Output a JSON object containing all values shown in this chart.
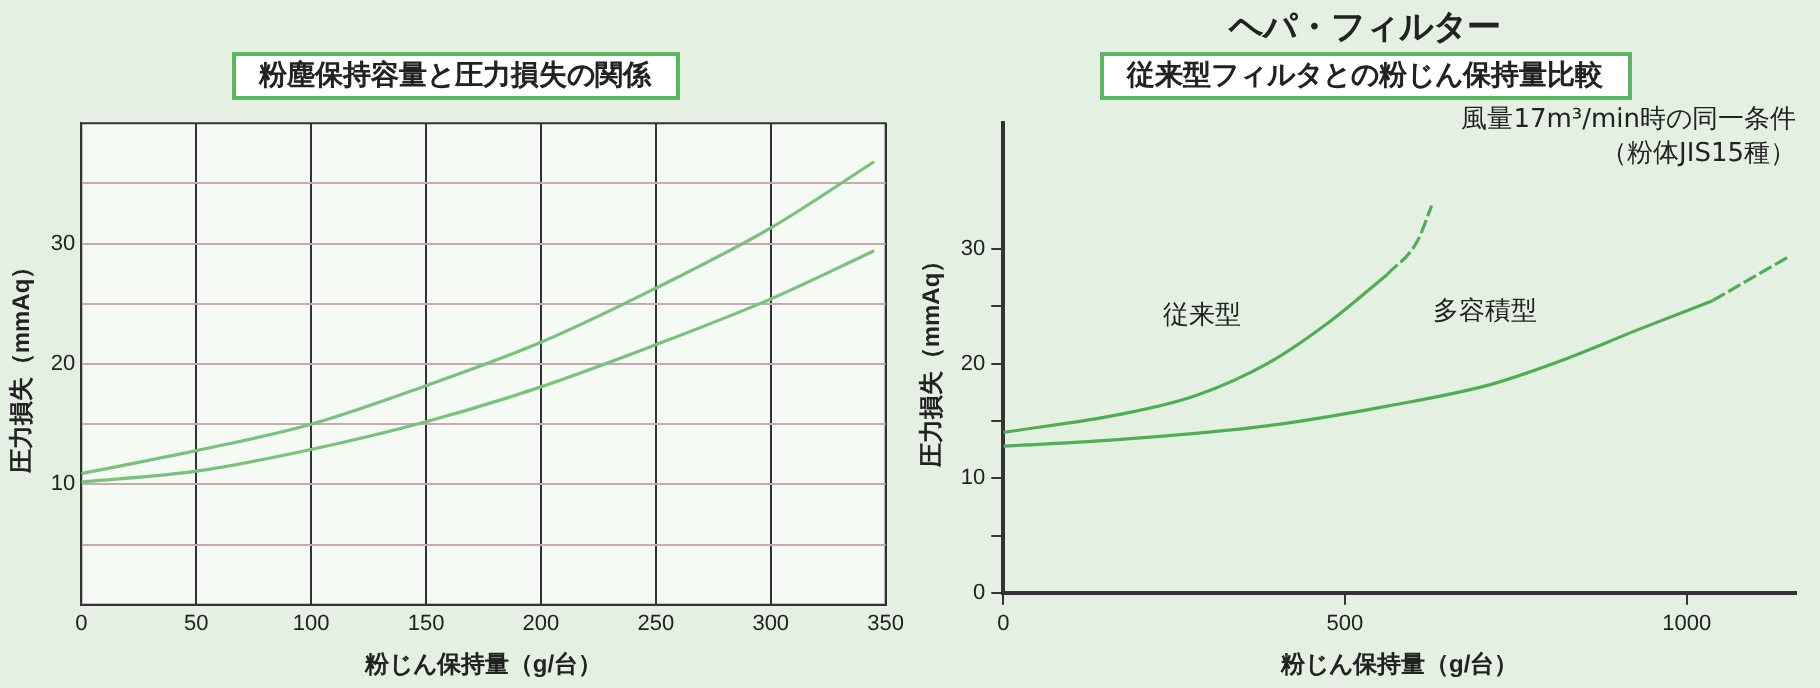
{
  "chart_data": [
    {
      "type": "line",
      "subtitle": "粉塵保持容量と圧力損失の関係",
      "xlabel": "粉じん保持量（g/台）",
      "ylabel": "圧力損失（mmAq）",
      "xlim": [
        0,
        350
      ],
      "xticks": [
        0,
        50,
        100,
        150,
        200,
        250,
        300,
        350
      ],
      "ylim": [
        0,
        40
      ],
      "yticks": [
        {
          "value": 5,
          "label": null
        },
        10,
        {
          "value": 15,
          "label": null
        },
        20,
        {
          "value": 25,
          "label": null
        },
        30,
        {
          "value": 35,
          "label": null
        }
      ],
      "grid": true,
      "legend": false,
      "series": [
        {
          "color": "#79c27a",
          "x": [
            0,
            50,
            100,
            150,
            200,
            250,
            300,
            345
          ],
          "values": [
            10.9,
            12.8,
            15,
            18.2,
            21.8,
            26.3,
            31.3,
            36.8
          ]
        },
        {
          "color": "#79c27a",
          "x": [
            0,
            50,
            100,
            150,
            200,
            250,
            300,
            345
          ],
          "values": [
            10.2,
            11.1,
            12.9,
            15.2,
            18.1,
            21.6,
            25.4,
            29.4
          ]
        }
      ]
    },
    {
      "type": "line",
      "title": "ヘパ・フィルター",
      "subtitle": "従来型フィルタとの粉じん保持量比較",
      "xlabel": "粉じん保持量（g/台）",
      "ylabel": "圧力損失（mmAq）",
      "annotations": [
        "風量17m³/min時の同一条件",
        "（粉体JIS15種）"
      ],
      "xlim": [
        0,
        1160
      ],
      "xticks": [
        0,
        500,
        1000
      ],
      "ylim": [
        0,
        41
      ],
      "yticks": [
        0,
        {
          "value": 5,
          "label": null
        },
        10,
        {
          "value": 15,
          "label": null
        },
        20,
        {
          "value": 25,
          "label": null
        },
        30
      ],
      "grid": false,
      "legend": false,
      "series": [
        {
          "name": "従来型",
          "color": "#4fae55",
          "x": [
            0,
            173,
            281,
            389,
            476,
            562
          ],
          "values": [
            14.0,
            15.6,
            17.2,
            20.1,
            23.6,
            27.8
          ]
        },
        {
          "color": "#4fae55",
          "line_style": "dashed",
          "x": [
            562,
            605,
            627
          ],
          "values": [
            27.8,
            30.6,
            33.8
          ]
        },
        {
          "name": "多容積型",
          "color": "#4fae55",
          "x": [
            0,
            173,
            389,
            562,
            714,
            822,
            930,
            1038
          ],
          "values": [
            12.8,
            13.4,
            14.6,
            16.3,
            18.2,
            20.4,
            23.0,
            25.5
          ]
        },
        {
          "color": "#4fae55",
          "line_style": "dashed",
          "x": [
            1038,
            1151
          ],
          "values": [
            25.5,
            29.4
          ]
        }
      ]
    }
  ]
}
